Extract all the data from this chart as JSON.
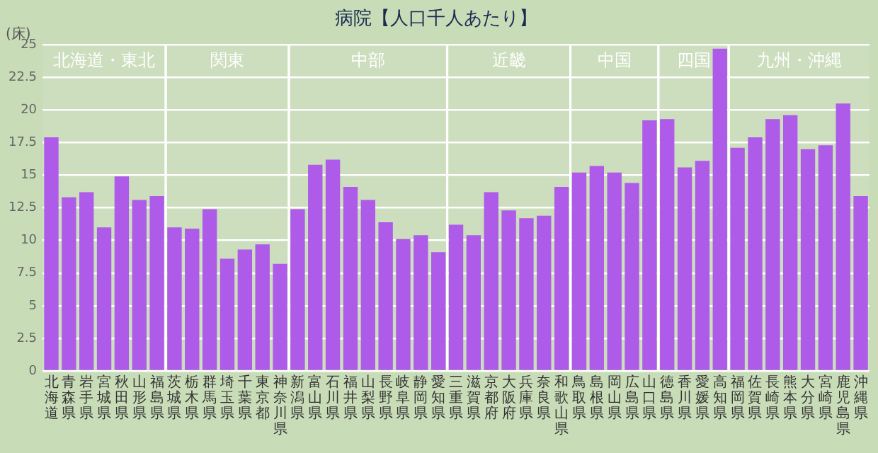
{
  "chart_data": {
    "type": "bar",
    "title": "病院【人口千人あたり】",
    "ylabel": "(床)",
    "categories": [
      "北海道",
      "青森県",
      "岩手県",
      "宮城県",
      "秋田県",
      "山形県",
      "福島県",
      "茨城県",
      "栃木県",
      "群馬県",
      "埼玉県",
      "千葉県",
      "東京都",
      "神奈川県",
      "新潟県",
      "富山県",
      "石川県",
      "福井県",
      "山梨県",
      "長野県",
      "岐阜県",
      "静岡県",
      "愛知県",
      "三重県",
      "滋賀県",
      "京都府",
      "大阪府",
      "兵庫県",
      "奈良県",
      "和歌山県",
      "鳥取県",
      "島根県",
      "岡山県",
      "広島県",
      "山口県",
      "徳島県",
      "香川県",
      "愛媛県",
      "高知県",
      "福岡県",
      "佐賀県",
      "長崎県",
      "熊本県",
      "大分県",
      "宮崎県",
      "鹿児島県",
      "沖縄県"
    ],
    "values": [
      17.9,
      13.3,
      13.7,
      11.0,
      14.9,
      13.1,
      13.4,
      11.0,
      10.9,
      12.4,
      8.6,
      9.3,
      9.7,
      8.2,
      12.4,
      15.8,
      16.2,
      14.1,
      13.1,
      11.4,
      10.1,
      10.4,
      9.1,
      11.2,
      10.4,
      13.7,
      12.3,
      11.7,
      11.9,
      14.1,
      15.2,
      15.7,
      15.2,
      14.4,
      19.2,
      19.3,
      15.6,
      16.1,
      24.7,
      17.1,
      17.9,
      19.3,
      19.6,
      17.0,
      17.3,
      20.5,
      13.4
    ],
    "color": "#a64ee6",
    "ylim": [
      0,
      25
    ],
    "yticks": [
      0,
      2.5,
      5,
      7.5,
      10,
      12.5,
      15,
      17.5,
      20,
      22.5,
      25
    ],
    "grid": "y",
    "legend": false,
    "bands": [
      {
        "axis": "x",
        "from": "北海道",
        "to": "福島県",
        "label": "北海道・東北",
        "color": "#ffffff"
      },
      {
        "axis": "x",
        "from": "茨城県",
        "to": "神奈川県",
        "label": "関東",
        "color": "#ffffff"
      },
      {
        "axis": "x",
        "from": "新潟県",
        "to": "愛知県",
        "label": "中部",
        "color": "#ffffff"
      },
      {
        "axis": "x",
        "from": "三重県",
        "to": "和歌山県",
        "label": "近畿",
        "color": "#ffffff"
      },
      {
        "axis": "x",
        "from": "鳥取県",
        "to": "山口県",
        "label": "中国",
        "color": "#ffffff"
      },
      {
        "axis": "x",
        "from": "徳島県",
        "to": "高知県",
        "label": "四国",
        "color": "#ffffff"
      },
      {
        "axis": "x",
        "from": "福岡県",
        "to": "沖縄県",
        "label": "九州・沖縄",
        "color": "#ffffff"
      }
    ]
  }
}
